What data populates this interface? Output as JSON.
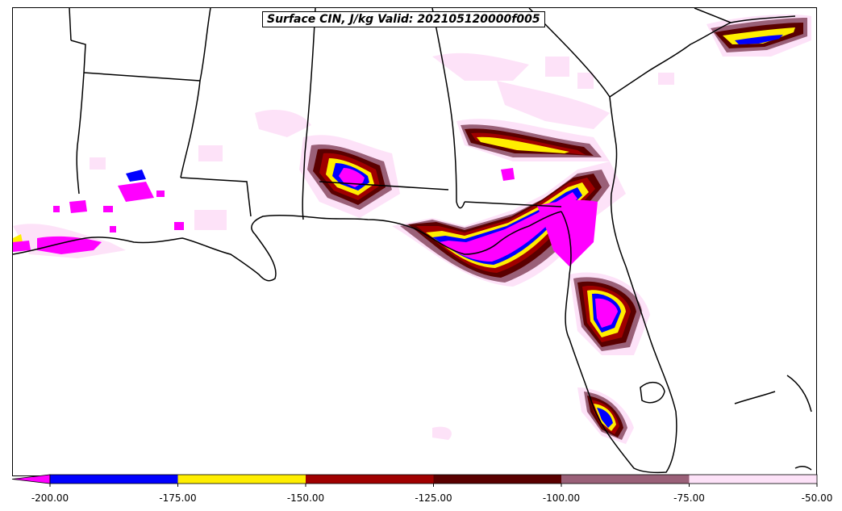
{
  "title": "Surface CIN, J/kg Valid: 202105120000f005",
  "colorbar": {
    "extend": "min",
    "bins": [
      {
        "lo": -200,
        "hi": -175,
        "color": "#0000ff"
      },
      {
        "lo": -175,
        "hi": -150,
        "color": "#ffee00"
      },
      {
        "lo": -150,
        "hi": -125,
        "color": "#a00000"
      },
      {
        "lo": -125,
        "hi": -100,
        "color": "#5a0000"
      },
      {
        "lo": -100,
        "hi": -75,
        "color": "#9a6078"
      },
      {
        "lo": -75,
        "hi": -50,
        "color": "#fde2f8"
      }
    ],
    "below_color": "#ff00ff",
    "ticks": [
      "-200.00",
      "-175.00",
      "-150.00",
      "-125.00",
      "-100.00",
      "-75.00",
      "-50.00"
    ]
  },
  "field_colors": {
    "magenta": "#ff00ff",
    "blue": "#0000ff",
    "yellow": "#ffee00",
    "red": "#a00000",
    "darkred": "#5a0000",
    "mauve": "#9a6078",
    "pink": "#fde2f8"
  }
}
